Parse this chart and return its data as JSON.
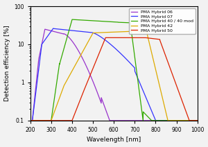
{
  "xlabel": "Wavelength [nm]",
  "ylabel": "Detection efficiency [%]",
  "xlim": [
    200,
    1000
  ],
  "ylim": [
    0.1,
    100
  ],
  "background": "#f0f0f0",
  "series": [
    {
      "label": "PMA Hybrid 06",
      "color": "#9933cc",
      "shape": "06"
    },
    {
      "label": "PMA Hybrid 07",
      "color": "#3333ff",
      "shape": "07"
    },
    {
      "label": "PMA Hybrid 40 / 40 mod",
      "color": "#33aa00",
      "shape": "40"
    },
    {
      "label": "PMA Hybrid 42",
      "color": "#ddaa00",
      "shape": "42"
    },
    {
      "label": "PMA Hybrid 50",
      "color": "#dd2200",
      "shape": "50"
    }
  ]
}
